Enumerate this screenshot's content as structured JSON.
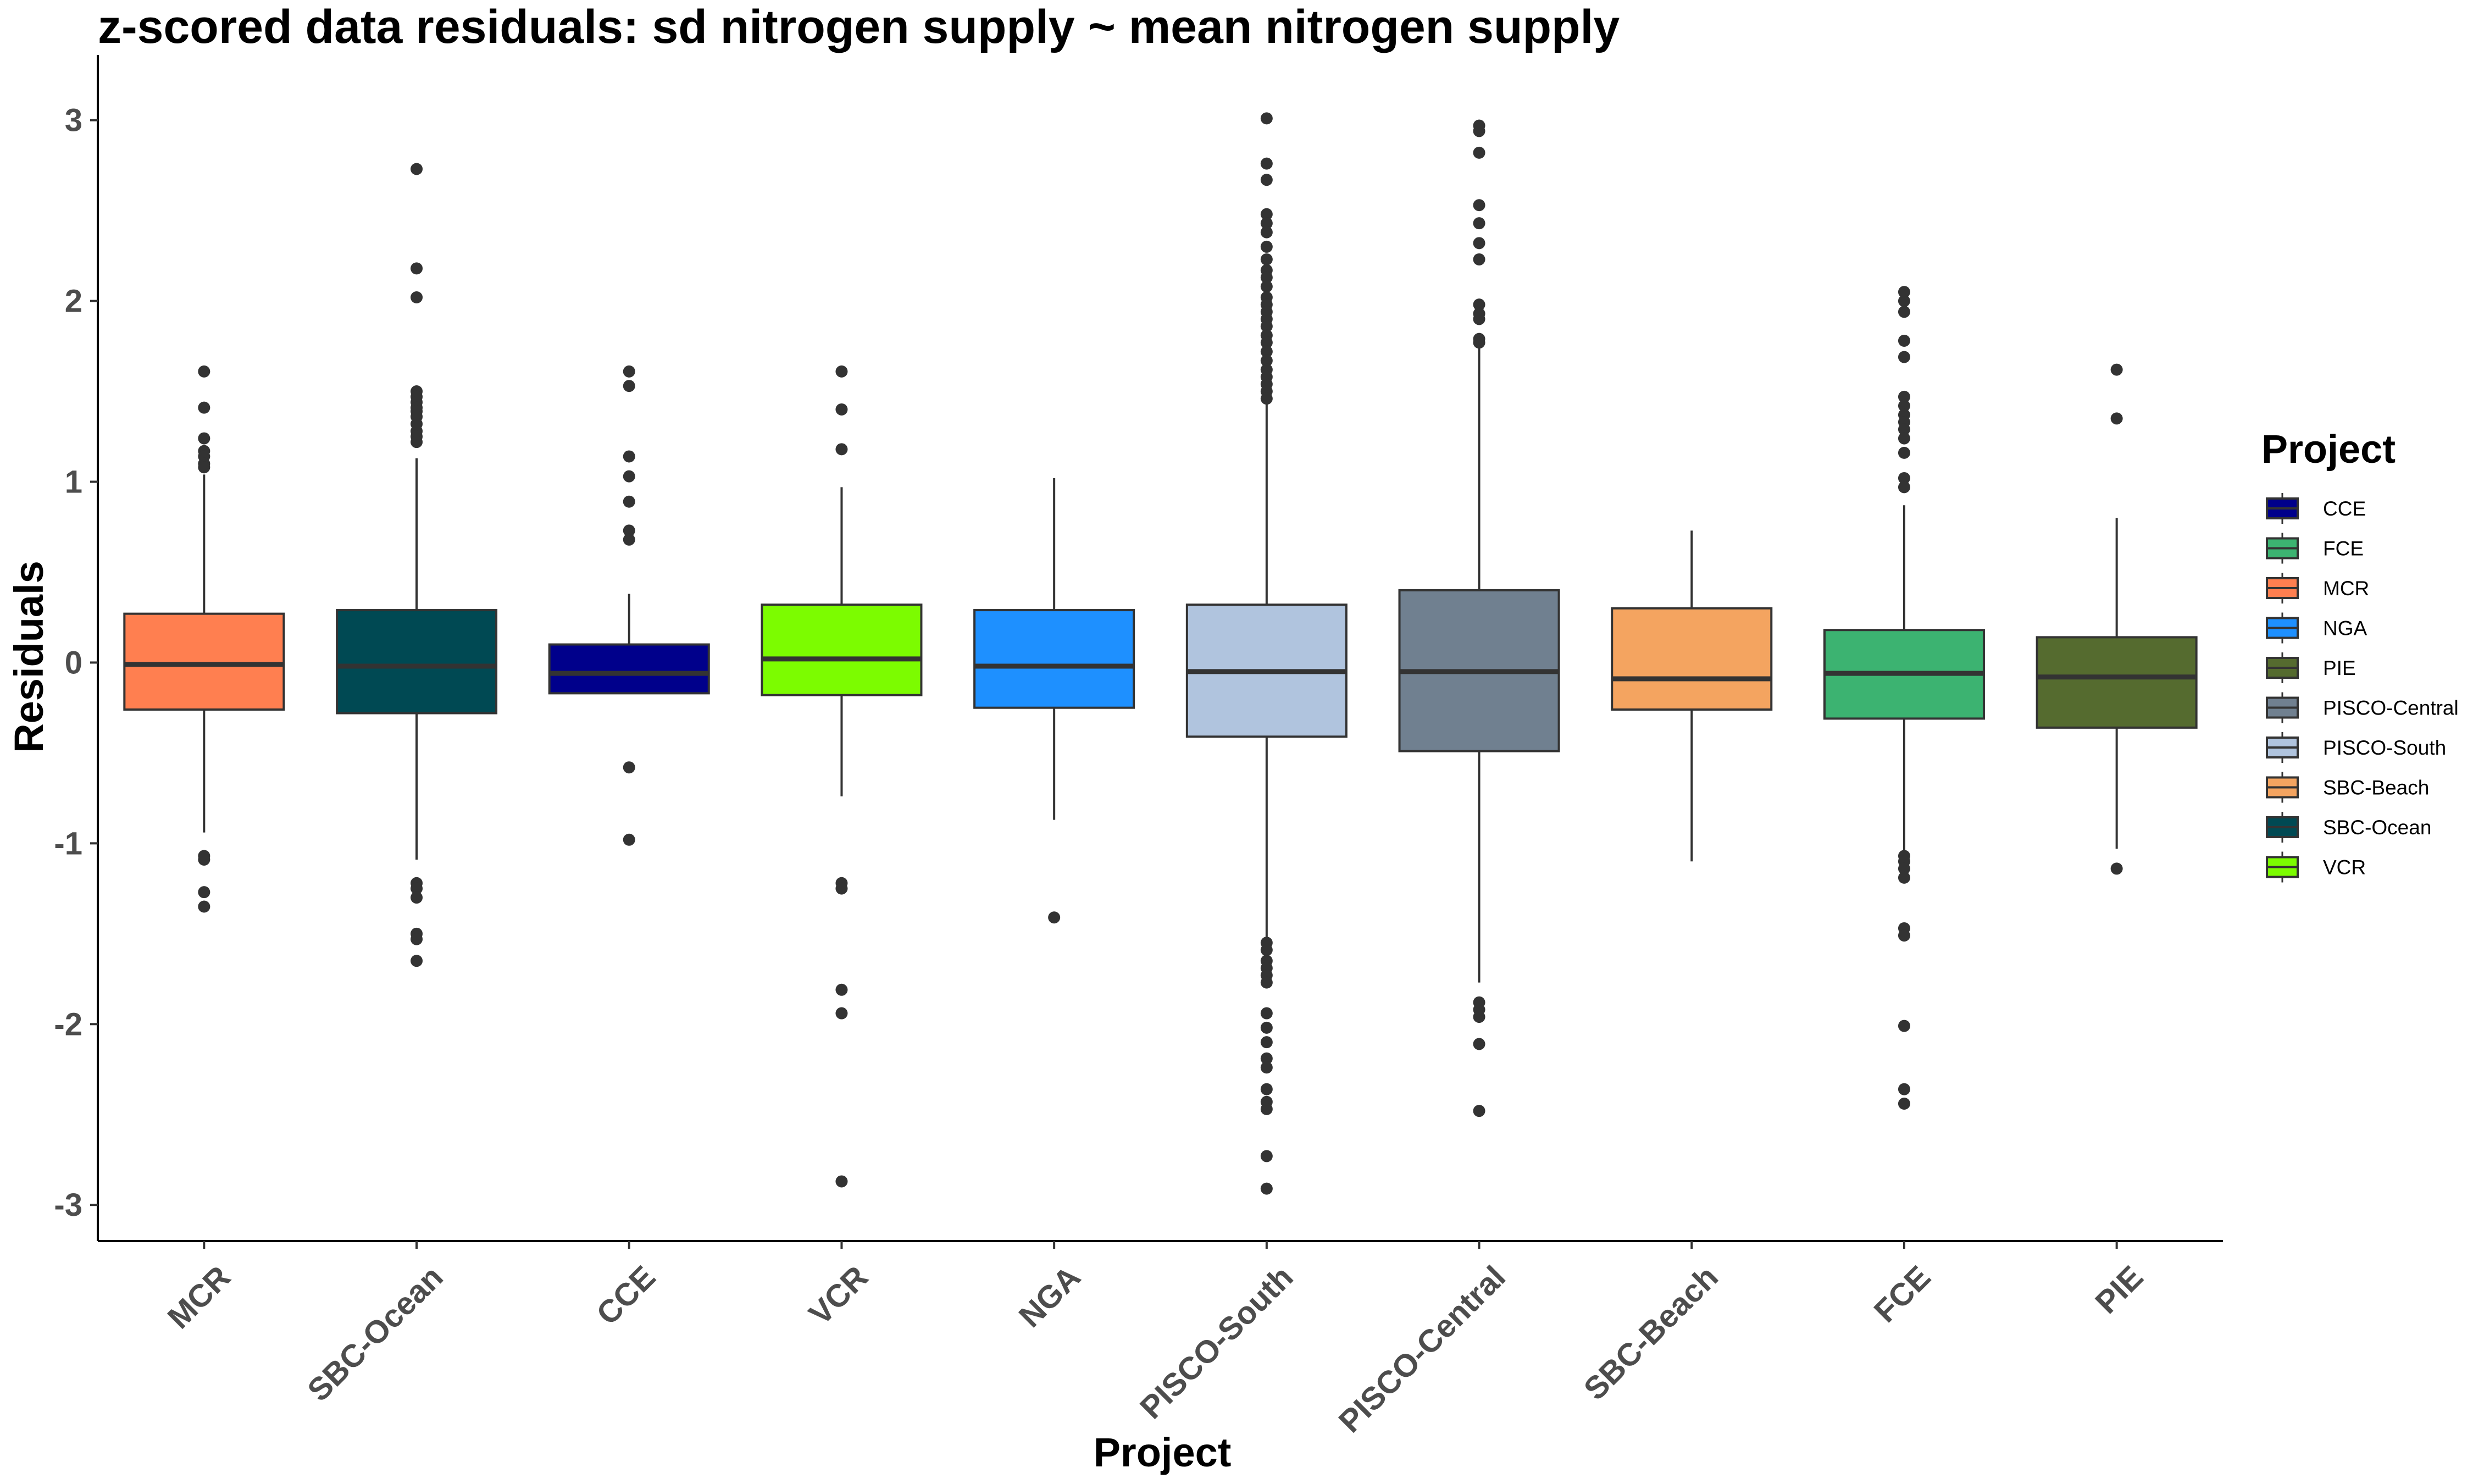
{
  "chart_data": {
    "type": "box",
    "title": "z-scored data residuals: sd nitrogen supply ~ mean nitrogen supply",
    "xlabel": "Project",
    "ylabel": "Residuals",
    "ylim": [
      -3.2,
      3.3
    ],
    "yticks": [
      3,
      2,
      1,
      0,
      -1,
      -2,
      -3
    ],
    "ytick_labels": [
      "3",
      "2",
      "1",
      "0",
      "-1",
      "-2",
      "-3"
    ],
    "grid": false,
    "legend": {
      "title": "Project",
      "position": "right",
      "entries": [
        "CCE",
        "FCE",
        "MCR",
        "NGA",
        "PIE",
        "PISCO-Central",
        "PISCO-South",
        "SBC-Beach",
        "SBC-Ocean",
        "VCR"
      ]
    },
    "colors": {
      "CCE": "#00008b",
      "FCE": "#3cb371",
      "MCR": "#ff7f50",
      "NGA": "#1e90ff",
      "PIE": "#556b2f",
      "PISCO-Central": "#708090",
      "PISCO-South": "#b0c4de",
      "SBC-Beach": "#f4a460",
      "SBC-Ocean": "#004953",
      "VCR": "#7cfc00"
    },
    "categories": [
      "MCR",
      "SBC-Ocean",
      "CCE",
      "VCR",
      "NGA",
      "PISCO-South",
      "PISCO-Central",
      "SBC-Beach",
      "FCE",
      "PIE"
    ],
    "boxes": [
      {
        "name": "MCR",
        "whisker_low": -0.94,
        "q1": -0.26,
        "median": -0.01,
        "q3": 0.27,
        "whisker_high": 1.04,
        "outliers": [
          1.61,
          1.41,
          1.24,
          1.17,
          1.14,
          1.1,
          1.08,
          -1.07,
          -1.09,
          -1.27,
          -1.35
        ]
      },
      {
        "name": "SBC-Ocean",
        "whisker_low": -1.09,
        "q1": -0.28,
        "median": -0.02,
        "q3": 0.29,
        "whisker_high": 1.13,
        "outliers": [
          2.73,
          2.18,
          2.02,
          1.5,
          1.47,
          1.44,
          1.41,
          1.39,
          1.36,
          1.32,
          1.28,
          1.25,
          1.22,
          -1.22,
          -1.25,
          -1.3,
          -1.5,
          -1.53,
          -1.65
        ]
      },
      {
        "name": "CCE",
        "whisker_low": -0.17,
        "q1": -0.17,
        "median": -0.06,
        "q3": 0.1,
        "whisker_high": 0.38,
        "outliers": [
          1.61,
          1.53,
          1.14,
          1.03,
          0.89,
          0.73,
          0.68,
          -0.58,
          -0.98
        ]
      },
      {
        "name": "VCR",
        "whisker_low": -0.74,
        "q1": -0.18,
        "median": 0.02,
        "q3": 0.32,
        "whisker_high": 0.97,
        "outliers": [
          1.61,
          1.4,
          1.18,
          -1.22,
          -1.25,
          -1.81,
          -1.94,
          -2.87
        ]
      },
      {
        "name": "NGA",
        "whisker_low": -0.87,
        "q1": -0.25,
        "median": -0.02,
        "q3": 0.29,
        "whisker_high": 1.02,
        "outliers": [
          -1.41
        ]
      },
      {
        "name": "PISCO-South",
        "whisker_low": -1.52,
        "q1": -0.41,
        "median": -0.05,
        "q3": 0.32,
        "whisker_high": 1.44,
        "outliers": [
          3.01,
          2.76,
          2.67,
          2.48,
          2.43,
          2.38,
          2.3,
          2.23,
          2.17,
          2.13,
          2.08,
          2.02,
          1.98,
          1.94,
          1.9,
          1.86,
          1.81,
          1.77,
          1.72,
          1.67,
          1.62,
          1.58,
          1.54,
          1.5,
          1.46,
          -1.55,
          -1.59,
          -1.65,
          -1.69,
          -1.73,
          -1.77,
          -1.94,
          -2.02,
          -2.1,
          -2.19,
          -2.24,
          -2.36,
          -2.43,
          -2.47,
          -2.73,
          -2.91
        ]
      },
      {
        "name": "PISCO-Central",
        "whisker_low": -1.77,
        "q1": -0.49,
        "median": -0.05,
        "q3": 0.4,
        "whisker_high": 1.76,
        "outliers": [
          2.97,
          2.94,
          2.82,
          2.53,
          2.43,
          2.32,
          2.23,
          1.98,
          1.93,
          1.9,
          1.79,
          1.77,
          -1.88,
          -1.92,
          -1.96,
          -2.11,
          -2.48
        ]
      },
      {
        "name": "SBC-Beach",
        "whisker_low": -1.1,
        "q1": -0.26,
        "median": -0.09,
        "q3": 0.3,
        "whisker_high": 0.73,
        "outliers": []
      },
      {
        "name": "FCE",
        "whisker_low": -1.04,
        "q1": -0.31,
        "median": -0.06,
        "q3": 0.18,
        "whisker_high": 0.87,
        "outliers": [
          2.05,
          2.0,
          1.94,
          1.78,
          1.69,
          1.47,
          1.42,
          1.37,
          1.33,
          1.29,
          1.24,
          1.16,
          1.02,
          0.97,
          -1.07,
          -1.1,
          -1.14,
          -1.19,
          -1.47,
          -1.51,
          -2.01,
          -2.36,
          -2.44
        ]
      },
      {
        "name": "PIE",
        "whisker_low": -1.03,
        "q1": -0.36,
        "median": -0.08,
        "q3": 0.14,
        "whisker_high": 0.8,
        "outliers": [
          1.62,
          1.35,
          -1.14
        ]
      }
    ]
  }
}
